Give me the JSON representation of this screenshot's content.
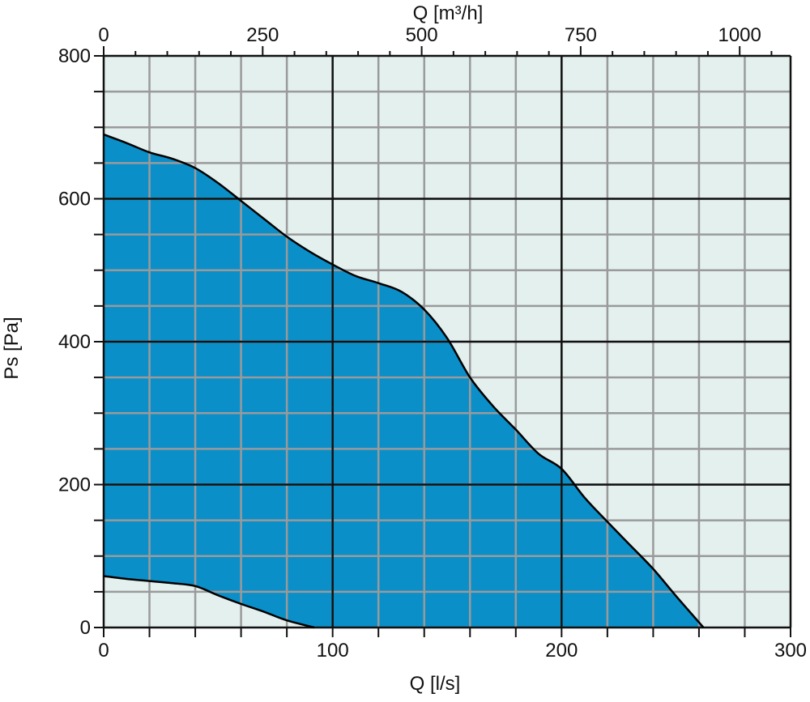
{
  "chart_data": {
    "type": "area",
    "x_label": "Q [l/s]",
    "x2_label": "Q [m³/h]",
    "y_label": "Ps [Pa]",
    "x_range": [
      0,
      300
    ],
    "x2_range": [
      0,
      1080
    ],
    "y_range": [
      0,
      800
    ],
    "x_ticks": [
      0,
      100,
      200,
      300
    ],
    "x_tick_labels": [
      "0",
      "100",
      "200",
      "300"
    ],
    "x2_ticks": [
      0,
      250,
      500,
      750,
      1000
    ],
    "x2_tick_labels": [
      "0",
      "250",
      "500",
      "750",
      "1000"
    ],
    "y_ticks": [
      0,
      200,
      400,
      600,
      800
    ],
    "y_tick_labels": [
      "0",
      "200",
      "400",
      "600",
      "800"
    ],
    "x_minor_step": 20,
    "y_minor_step": 50,
    "grid": true,
    "colors": {
      "plot_background": "#e3f0ee",
      "fill": "#0a8fc9",
      "major_grid": "#111111",
      "minor_grid": "#9a9a9a",
      "curve": "#000000"
    },
    "upper_curve": [
      {
        "x": 0,
        "y": 690
      },
      {
        "x": 10,
        "y": 678
      },
      {
        "x": 20,
        "y": 665
      },
      {
        "x": 30,
        "y": 656
      },
      {
        "x": 40,
        "y": 643
      },
      {
        "x": 50,
        "y": 622
      },
      {
        "x": 60,
        "y": 597
      },
      {
        "x": 70,
        "y": 572
      },
      {
        "x": 80,
        "y": 547
      },
      {
        "x": 90,
        "y": 526
      },
      {
        "x": 100,
        "y": 508
      },
      {
        "x": 110,
        "y": 492
      },
      {
        "x": 120,
        "y": 482
      },
      {
        "x": 130,
        "y": 470
      },
      {
        "x": 140,
        "y": 445
      },
      {
        "x": 150,
        "y": 405
      },
      {
        "x": 160,
        "y": 350
      },
      {
        "x": 170,
        "y": 310
      },
      {
        "x": 180,
        "y": 277
      },
      {
        "x": 190,
        "y": 243
      },
      {
        "x": 200,
        "y": 222
      },
      {
        "x": 210,
        "y": 182
      },
      {
        "x": 220,
        "y": 148
      },
      {
        "x": 230,
        "y": 115
      },
      {
        "x": 240,
        "y": 82
      },
      {
        "x": 250,
        "y": 44
      },
      {
        "x": 262,
        "y": 0
      }
    ],
    "lower_curve": [
      {
        "x": 0,
        "y": 72
      },
      {
        "x": 10,
        "y": 68
      },
      {
        "x": 20,
        "y": 65
      },
      {
        "x": 30,
        "y": 62
      },
      {
        "x": 40,
        "y": 58
      },
      {
        "x": 50,
        "y": 45
      },
      {
        "x": 60,
        "y": 33
      },
      {
        "x": 70,
        "y": 22
      },
      {
        "x": 80,
        "y": 10
      },
      {
        "x": 92,
        "y": 0
      }
    ]
  }
}
